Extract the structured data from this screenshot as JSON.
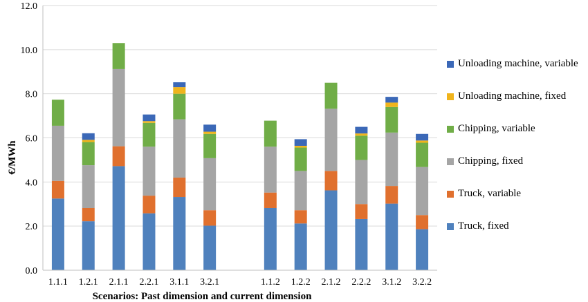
{
  "chart_data": {
    "type": "bar",
    "stacked": true,
    "ylabel": "€/MWh",
    "xlabel": "Scenarios: Past dimension and current dimension",
    "ylim": [
      0,
      12
    ],
    "yticks": [
      "0.0",
      "2.0",
      "4.0",
      "6.0",
      "8.0",
      "10.0",
      "12.0"
    ],
    "grid": true,
    "legend_position": "right",
    "categories": [
      "1.1.1",
      "1.2.1",
      "2.1.1",
      "2.2.1",
      "3.1.1",
      "3.2.1",
      "1.1.2",
      "1.2.2",
      "2.1.2",
      "2.2.2",
      "3.1.2",
      "3.2.2"
    ],
    "group_gap_after": 5,
    "series": [
      {
        "name": "Truck, fixed",
        "color": "#4f81bd",
        "values": [
          3.25,
          2.22,
          4.72,
          2.58,
          3.32,
          2.02,
          2.82,
          2.12,
          3.62,
          2.32,
          3.02,
          1.86
        ]
      },
      {
        "name": "Truck, variable",
        "color": "#e0702e",
        "values": [
          0.8,
          0.6,
          0.9,
          0.8,
          0.88,
          0.7,
          0.7,
          0.6,
          0.88,
          0.68,
          0.8,
          0.64
        ]
      },
      {
        "name": "Chipping, fixed",
        "color": "#a5a5a5",
        "values": [
          2.5,
          1.94,
          3.5,
          2.22,
          2.64,
          2.36,
          2.08,
          1.78,
          2.82,
          2.0,
          2.42,
          2.18
        ]
      },
      {
        "name": "Chipping, variable",
        "color": "#70ad47",
        "values": [
          1.18,
          1.05,
          1.18,
          1.08,
          1.16,
          1.1,
          1.18,
          1.06,
          1.18,
          1.1,
          1.16,
          1.1
        ]
      },
      {
        "name": "Unloading machine, fixed",
        "color": "#f0b41c",
        "values": [
          0.0,
          0.1,
          0.0,
          0.08,
          0.3,
          0.1,
          0.0,
          0.08,
          0.0,
          0.1,
          0.2,
          0.1
        ]
      },
      {
        "name": "Unloading machine, variable",
        "color": "#3b68b7",
        "values": [
          0.0,
          0.3,
          0.0,
          0.3,
          0.22,
          0.32,
          0.0,
          0.3,
          0.0,
          0.3,
          0.26,
          0.3
        ]
      }
    ]
  }
}
